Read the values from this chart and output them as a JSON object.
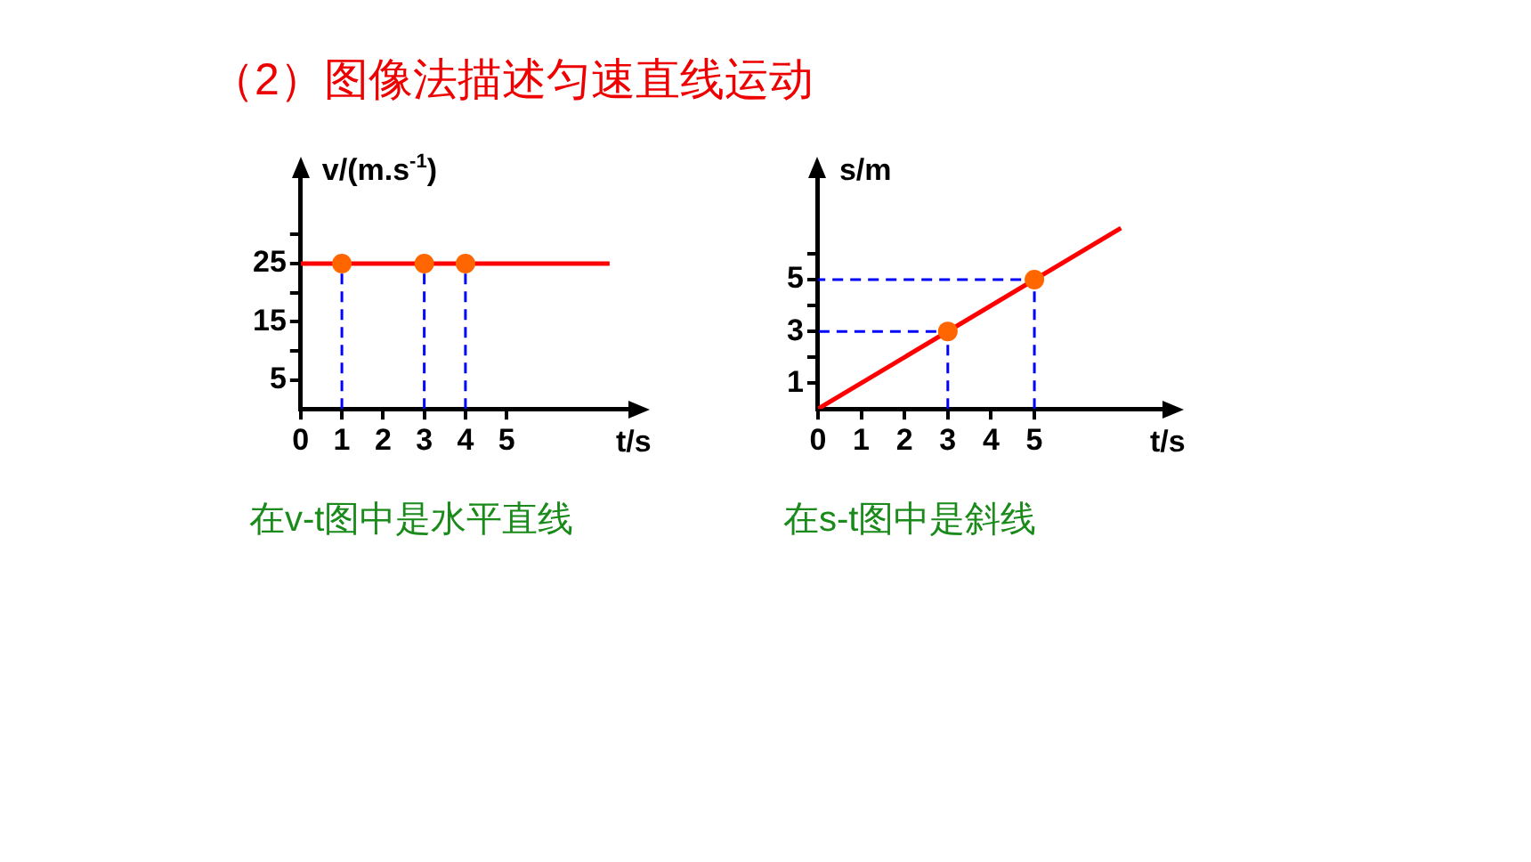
{
  "chart_data": [
    {
      "type": "line",
      "title": "（2）图像法描述匀速直线运动",
      "ylabel": "v/(m.s$^{-1}$)",
      "xlabel": "t/s",
      "annotations": [
        "在v-t图中是水平直线"
      ],
      "xlim": [
        0,
        8
      ],
      "xticks": [
        {
          "value": 0,
          "label": "0"
        },
        1,
        2,
        3,
        4,
        5
      ],
      "ylim": [
        0,
        40
      ],
      "yticks": [
        5,
        {
          "value": 10,
          "label": null
        },
        15,
        {
          "value": 20,
          "label": null
        },
        25,
        {
          "value": 30,
          "label": null
        }
      ],
      "grid": false,
      "legend": false,
      "series": [
        {
          "type": "line",
          "color": "#ff0000",
          "marker": "none",
          "x": [
            0,
            7.5
          ],
          "values": [
            25,
            25
          ]
        },
        {
          "type": "line",
          "color": "#0000ff",
          "marker": "none",
          "line_style": "dashed",
          "x": [
            1,
            1
          ],
          "values": [
            0,
            25
          ]
        },
        {
          "type": "line",
          "color": "#0000ff",
          "marker": "none",
          "line_style": "dashed",
          "x": [
            3,
            3
          ],
          "values": [
            0,
            25
          ]
        },
        {
          "type": "line",
          "color": "#0000ff",
          "marker": "none",
          "line_style": "dashed",
          "x": [
            4,
            4
          ],
          "values": [
            0,
            25
          ]
        },
        {
          "type": "scatter",
          "color": "#ff6600",
          "marker": "circle",
          "x": [
            1,
            3,
            4
          ],
          "values": [
            25,
            25,
            25
          ]
        }
      ]
    },
    {
      "type": "line",
      "ylabel": "s/m",
      "xlabel": "t/s",
      "annotations": [
        "在s-t图中是斜线"
      ],
      "xlim": [
        0,
        8
      ],
      "xticks": [
        {
          "value": 0,
          "label": "0"
        },
        1,
        2,
        3,
        4,
        5
      ],
      "ylim": [
        0,
        9
      ],
      "yticks": [
        1,
        {
          "value": 2,
          "label": null
        },
        3,
        {
          "value": 4,
          "label": null
        },
        5,
        {
          "value": 6,
          "label": null
        }
      ],
      "grid": false,
      "legend": false,
      "series": [
        {
          "type": "line",
          "color": "#ff0000",
          "marker": "none",
          "x": [
            0,
            7
          ],
          "values": [
            0,
            7
          ]
        },
        {
          "type": "line",
          "color": "#0000ff",
          "marker": "none",
          "line_style": "dashed",
          "x": [
            3,
            3,
            0
          ],
          "values": [
            0,
            3,
            3
          ]
        },
        {
          "type": "line",
          "color": "#0000ff",
          "marker": "none",
          "line_style": "dashed",
          "x": [
            5,
            5,
            0
          ],
          "values": [
            0,
            5,
            5
          ]
        },
        {
          "type": "scatter",
          "color": "#ff6600",
          "marker": "circle",
          "x": [
            3,
            5
          ],
          "values": [
            3,
            5
          ]
        }
      ]
    }
  ]
}
